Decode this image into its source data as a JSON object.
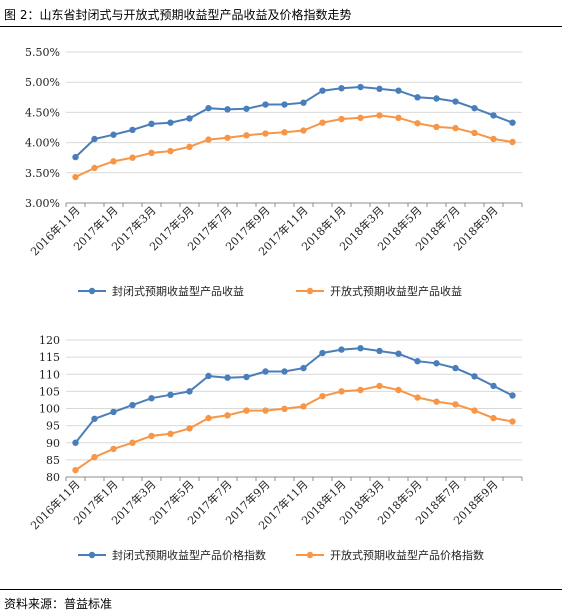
{
  "header": {
    "title": "图 2：山东省封闭式与开放式预期收益型产品收益及价格指数走势"
  },
  "footer": {
    "source": "资料来源：普益标准"
  },
  "colors": {
    "closed": "#4A7EBB",
    "open": "#F79646",
    "axis": "#8C8C8C",
    "grid": "#D9D9D9"
  },
  "chart_data": [
    {
      "type": "line",
      "categories": [
        "2016年11月",
        "2016年12月",
        "2017年1月",
        "2017年2月",
        "2017年3月",
        "2017年4月",
        "2017年5月",
        "2017年6月",
        "2017年7月",
        "2017年8月",
        "2017年9月",
        "2017年10月",
        "2017年11月",
        "2017年12月",
        "2018年1月",
        "2018年2月",
        "2018年3月",
        "2018年4月",
        "2018年5月",
        "2018年6月",
        "2018年7月",
        "2018年8月",
        "2018年9月",
        "2018年10月"
      ],
      "x_tick_labels": [
        "2016年11月",
        "2017年1月",
        "2017年3月",
        "2017年5月",
        "2017年7月",
        "2017年9月",
        "2017年11月",
        "2018年1月",
        "2018年3月",
        "2018年5月",
        "2018年7月",
        "2018年9月"
      ],
      "y_ticks": [
        "3.00%",
        "3.50%",
        "4.00%",
        "4.50%",
        "5.00%",
        "5.50%"
      ],
      "ylim": [
        3.0,
        5.5
      ],
      "legend_position": "bottom",
      "series": [
        {
          "name": "封闭式预期收益型产品收益",
          "color_key": "closed",
          "values": [
            3.76,
            4.06,
            4.13,
            4.21,
            4.31,
            4.33,
            4.4,
            4.57,
            4.55,
            4.56,
            4.63,
            4.63,
            4.66,
            4.86,
            4.9,
            4.92,
            4.89,
            4.86,
            4.75,
            4.73,
            4.68,
            4.57,
            4.45,
            4.33
          ]
        },
        {
          "name": "开放式预期收益型产品收益",
          "color_key": "open",
          "values": [
            3.43,
            3.58,
            3.69,
            3.75,
            3.83,
            3.86,
            3.93,
            4.05,
            4.08,
            4.12,
            4.15,
            4.17,
            4.2,
            4.33,
            4.39,
            4.41,
            4.45,
            4.41,
            4.32,
            4.26,
            4.24,
            4.16,
            4.06,
            4.01
          ]
        }
      ]
    },
    {
      "type": "line",
      "categories": [
        "2016年11月",
        "2016年12月",
        "2017年1月",
        "2017年2月",
        "2017年3月",
        "2017年4月",
        "2017年5月",
        "2017年6月",
        "2017年7月",
        "2017年8月",
        "2017年9月",
        "2017年10月",
        "2017年11月",
        "2017年12月",
        "2018年1月",
        "2018年2月",
        "2018年3月",
        "2018年4月",
        "2018年5月",
        "2018年6月",
        "2018年7月",
        "2018年8月",
        "2018年9月",
        "2018年10月"
      ],
      "x_tick_labels": [
        "2016年11月",
        "2017年1月",
        "2017年3月",
        "2017年5月",
        "2017年7月",
        "2017年9月",
        "2017年11月",
        "2018年1月",
        "2018年3月",
        "2018年5月",
        "2018年7月",
        "2018年9月"
      ],
      "y_ticks": [
        "80",
        "85",
        "90",
        "95",
        "100",
        "105",
        "110",
        "115",
        "120"
      ],
      "ylim": [
        80,
        120
      ],
      "legend_position": "bottom",
      "series": [
        {
          "name": "封闭式预期收益型产品价格指数",
          "color_key": "closed",
          "values": [
            90.0,
            97.0,
            99.0,
            101.0,
            103.0,
            104.0,
            105.0,
            109.5,
            109.0,
            109.2,
            110.8,
            110.8,
            111.8,
            116.2,
            117.2,
            117.6,
            116.8,
            116.0,
            113.8,
            113.2,
            111.8,
            109.4,
            106.6,
            103.8
          ]
        },
        {
          "name": "开放式预期收益型产品价格指数",
          "color_key": "open",
          "values": [
            82.0,
            85.8,
            88.2,
            90.0,
            92.0,
            92.6,
            94.2,
            97.2,
            98.0,
            99.4,
            99.4,
            99.9,
            100.6,
            103.6,
            105.0,
            105.4,
            106.6,
            105.4,
            103.2,
            102.0,
            101.2,
            99.4,
            97.2,
            96.2
          ]
        }
      ]
    }
  ]
}
